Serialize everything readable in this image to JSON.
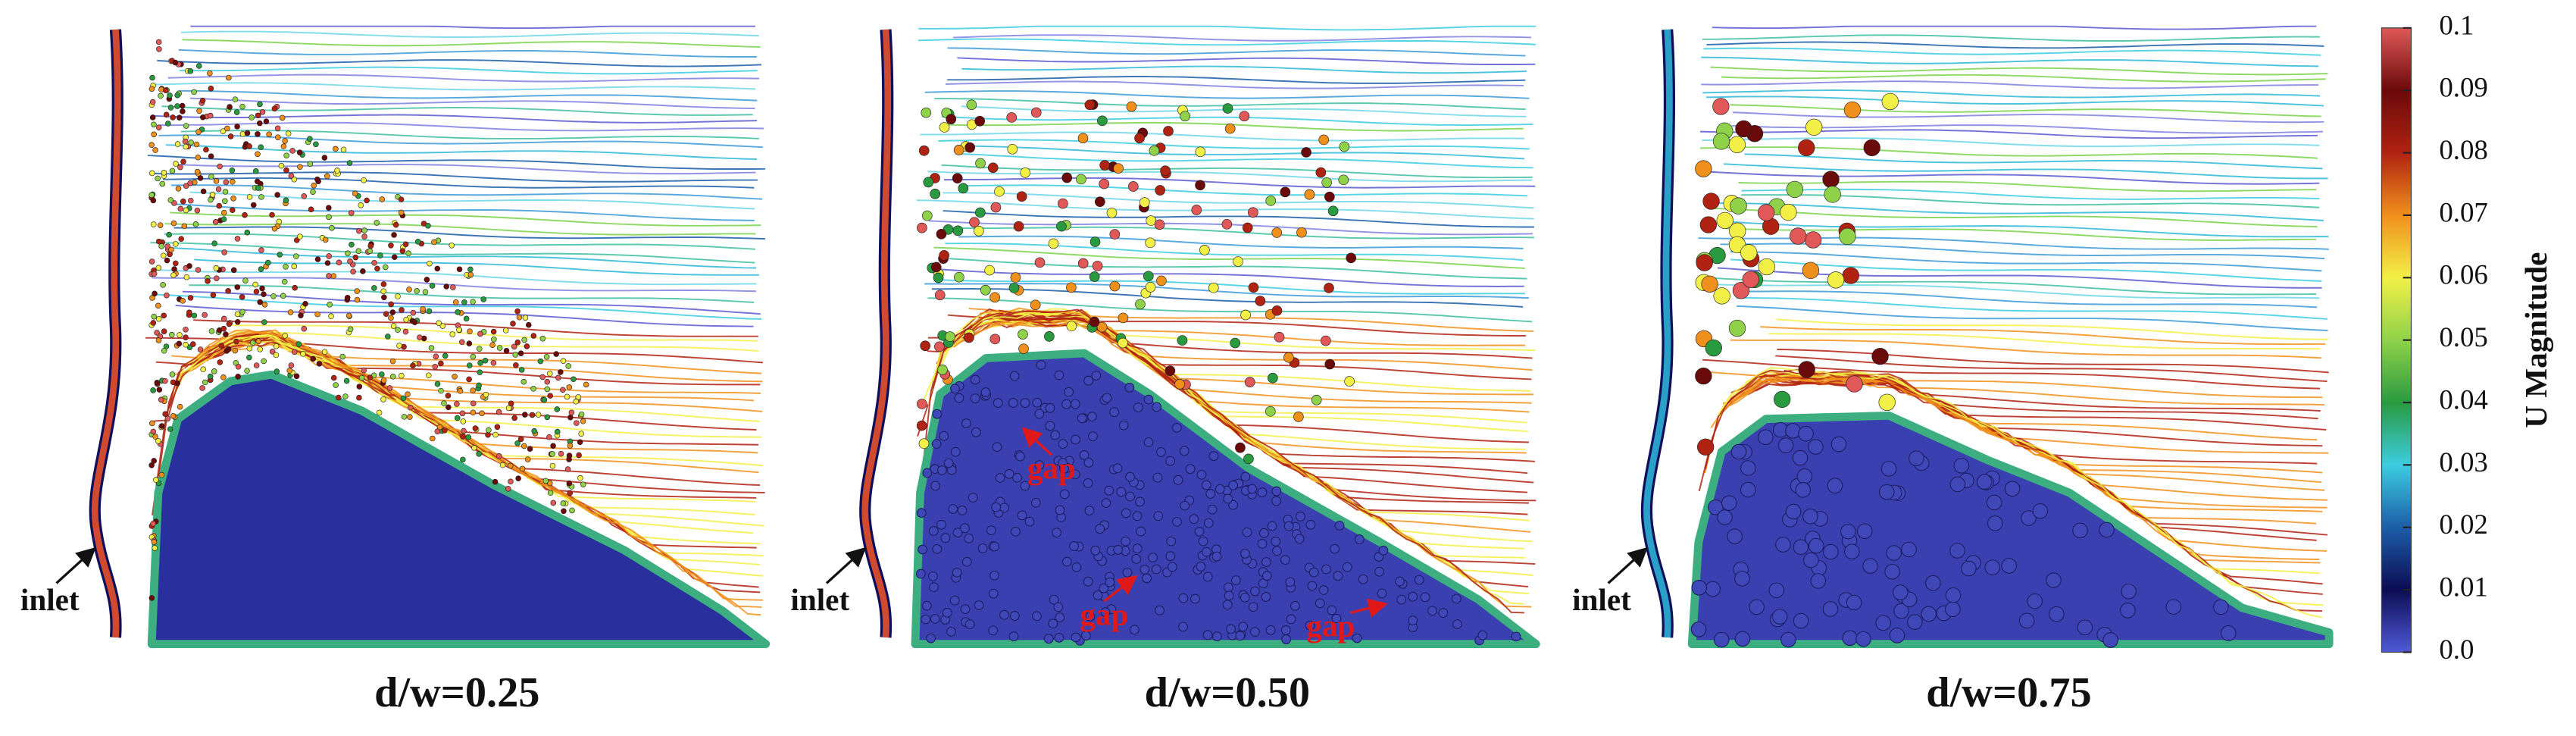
{
  "panels": [
    {
      "label": "d/w=0.25",
      "inlet": "inlet"
    },
    {
      "label": "d/w=0.50",
      "inlet": "inlet",
      "annotations": [
        "gap",
        "gap",
        "gap"
      ]
    },
    {
      "label": "d/w=0.75",
      "inlet": "inlet"
    }
  ],
  "colorbar": {
    "title": "U Magnitude",
    "range": [
      0,
      0.1
    ],
    "ticks": [
      {
        "value": 0,
        "label": "0.0"
      },
      0.01,
      0.02,
      0.03,
      0.04,
      0.05,
      0.06,
      0.07,
      0.08,
      0.09,
      0.1
    ]
  }
}
